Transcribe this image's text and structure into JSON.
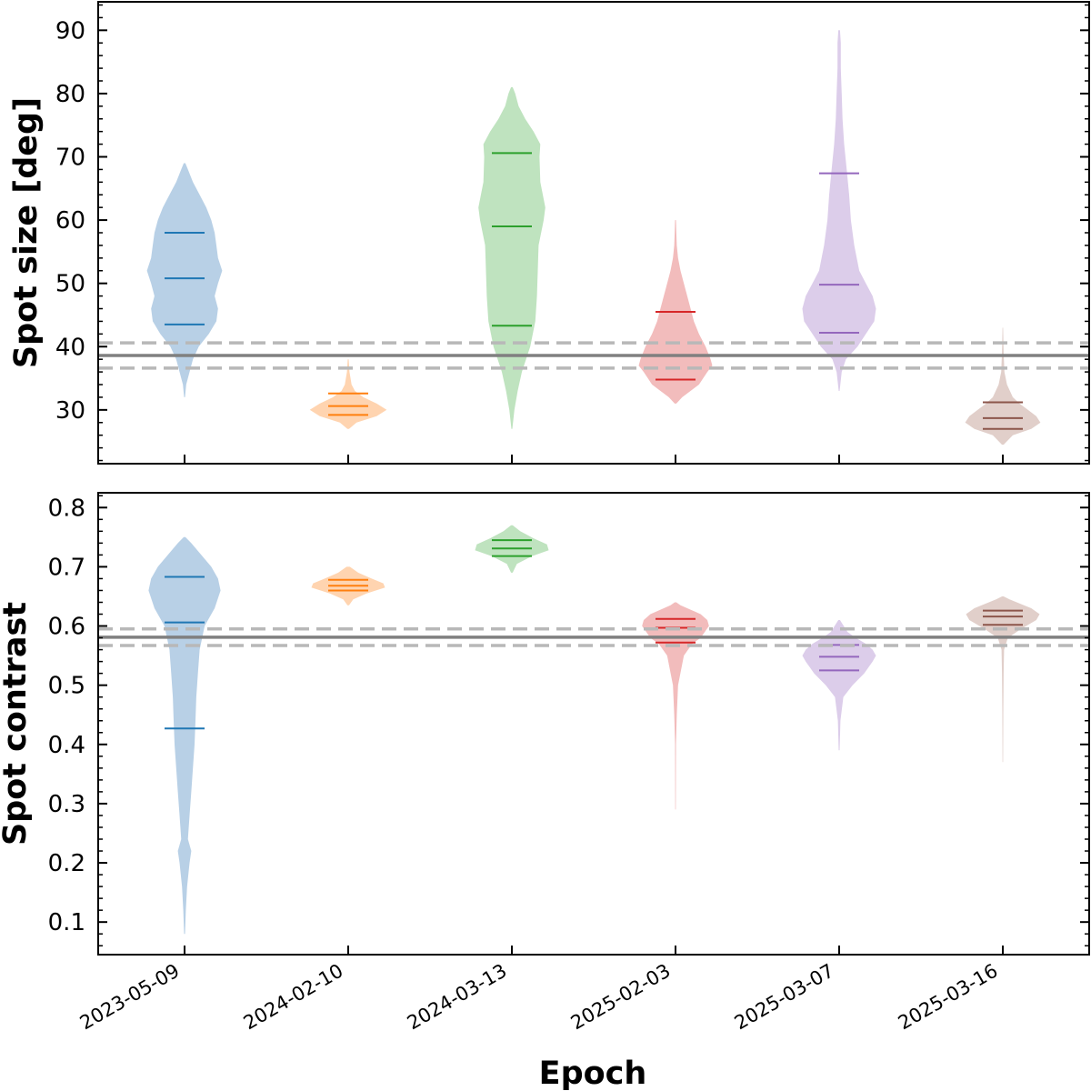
{
  "figure": {
    "xlabel": "Epoch"
  },
  "chart_data": [
    {
      "type": "violin",
      "title": "",
      "xlabel": "",
      "ylabel": "Spot size [deg]",
      "ylim": [
        21.5,
        94.5
      ],
      "yticks": [
        30,
        40,
        50,
        60,
        70,
        80,
        90
      ],
      "categories": [
        "2023-05-09",
        "2024-02-10",
        "2024-03-13",
        "2025-02-03",
        "2025-03-07",
        "2025-03-16"
      ],
      "reference": {
        "value": 38.6,
        "lower": 36.6,
        "upper": 40.6
      },
      "series": [
        {
          "name": "2023-05-09",
          "color": "#1f77b4",
          "fill": "#b8d0e6",
          "percentiles": [
            43.5,
            50.8,
            58.0
          ],
          "profile": [
            [
              32,
              0.5
            ],
            [
              34,
              2
            ],
            [
              36,
              6
            ],
            [
              38,
              10
            ],
            [
              40,
              17
            ],
            [
              42,
              29
            ],
            [
              44,
              38
            ],
            [
              46,
              40
            ],
            [
              48,
              36
            ],
            [
              50,
              40
            ],
            [
              52,
              45
            ],
            [
              54,
              40
            ],
            [
              56,
              38
            ],
            [
              58,
              36
            ],
            [
              60,
              32
            ],
            [
              62,
              26
            ],
            [
              64,
              18
            ],
            [
              66,
              10
            ],
            [
              68,
              4
            ],
            [
              69,
              1
            ]
          ]
        },
        {
          "name": "2024-02-10",
          "color": "#ff7f0e",
          "fill": "#ffd4b0",
          "percentiles": [
            29.2,
            30.6,
            32.6
          ],
          "profile": [
            [
              27,
              1
            ],
            [
              28,
              10
            ],
            [
              29,
              34
            ],
            [
              30,
              46
            ],
            [
              31,
              34
            ],
            [
              32,
              18
            ],
            [
              33,
              8
            ],
            [
              34,
              4
            ],
            [
              36,
              1.5
            ],
            [
              38,
              0.5
            ]
          ]
        },
        {
          "name": "2024-03-13",
          "color": "#2ca02c",
          "fill": "#bfe3bf",
          "percentiles": [
            43.3,
            59.0,
            70.6
          ],
          "profile": [
            [
              27,
              0.5
            ],
            [
              30,
              3
            ],
            [
              33,
              7
            ],
            [
              36,
              12
            ],
            [
              40,
              22
            ],
            [
              44,
              28
            ],
            [
              48,
              30
            ],
            [
              52,
              31
            ],
            [
              56,
              32
            ],
            [
              60,
              38
            ],
            [
              62,
              40
            ],
            [
              66,
              34
            ],
            [
              70,
              33
            ],
            [
              72,
              34
            ],
            [
              74,
              26
            ],
            [
              76,
              16
            ],
            [
              78,
              8
            ],
            [
              80,
              4
            ],
            [
              81,
              1
            ]
          ]
        },
        {
          "name": "2025-02-03",
          "color": "#d62728",
          "fill": "#f2bcbc",
          "percentiles": [
            34.8,
            38.6,
            45.5
          ],
          "profile": [
            [
              31,
              1
            ],
            [
              32,
              8
            ],
            [
              34,
              28
            ],
            [
              36,
              38
            ],
            [
              37,
              44
            ],
            [
              38,
              42
            ],
            [
              40,
              36
            ],
            [
              42,
              28
            ],
            [
              44,
              22
            ],
            [
              46,
              18
            ],
            [
              48,
              14
            ],
            [
              50,
              10
            ],
            [
              52,
              6
            ],
            [
              54,
              3
            ],
            [
              56,
              1.5
            ],
            [
              58,
              1
            ],
            [
              60,
              0.5
            ]
          ]
        },
        {
          "name": "2025-03-07",
          "color": "#9467bd",
          "fill": "#dccdea",
          "percentiles": [
            42.2,
            49.8,
            67.4
          ],
          "profile": [
            [
              33,
              0.5
            ],
            [
              36,
              3
            ],
            [
              38,
              8
            ],
            [
              40,
              22
            ],
            [
              42,
              32
            ],
            [
              44,
              42
            ],
            [
              46,
              44
            ],
            [
              48,
              40
            ],
            [
              50,
              32
            ],
            [
              52,
              24
            ],
            [
              56,
              18
            ],
            [
              60,
              14
            ],
            [
              64,
              12
            ],
            [
              68,
              9
            ],
            [
              72,
              6
            ],
            [
              76,
              4
            ],
            [
              80,
              3
            ],
            [
              84,
              2
            ],
            [
              88,
              2
            ],
            [
              90,
              1
            ]
          ]
        },
        {
          "name": "2025-03-16",
          "color": "#8c564b",
          "fill": "#e1cfca",
          "percentiles": [
            27.0,
            28.7,
            31.2
          ],
          "profile": [
            [
              24.5,
              1
            ],
            [
              26,
              12
            ],
            [
              27,
              34
            ],
            [
              28,
              45
            ],
            [
              29,
              40
            ],
            [
              30,
              30
            ],
            [
              31,
              20
            ],
            [
              32,
              12
            ],
            [
              34,
              5
            ],
            [
              36,
              2
            ],
            [
              39,
              1
            ],
            [
              43,
              0.3
            ]
          ]
        }
      ]
    },
    {
      "type": "violin",
      "title": "",
      "xlabel": "Epoch",
      "ylabel": "Spot contrast",
      "ylim": [
        0.045,
        0.825
      ],
      "yticks": [
        0.1,
        0.2,
        0.3,
        0.4,
        0.5,
        0.6,
        0.7,
        0.8
      ],
      "categories": [
        "2023-05-09",
        "2024-02-10",
        "2024-03-13",
        "2025-02-03",
        "2025-03-07",
        "2025-03-16"
      ],
      "reference": {
        "value": 0.581,
        "lower": 0.567,
        "upper": 0.595
      },
      "series": [
        {
          "name": "2023-05-09",
          "color": "#1f77b4",
          "fill": "#b8d0e6",
          "percentiles": [
            0.427,
            0.606,
            0.683
          ],
          "profile": [
            [
              0.08,
              0.5
            ],
            [
              0.12,
              1.5
            ],
            [
              0.16,
              3
            ],
            [
              0.2,
              6
            ],
            [
              0.22,
              8
            ],
            [
              0.24,
              4
            ],
            [
              0.28,
              6
            ],
            [
              0.32,
              8
            ],
            [
              0.36,
              10
            ],
            [
              0.4,
              12
            ],
            [
              0.44,
              13
            ],
            [
              0.48,
              14
            ],
            [
              0.52,
              16
            ],
            [
              0.56,
              18
            ],
            [
              0.6,
              24
            ],
            [
              0.63,
              36
            ],
            [
              0.66,
              43
            ],
            [
              0.68,
              40
            ],
            [
              0.7,
              32
            ],
            [
              0.72,
              20
            ],
            [
              0.74,
              8
            ],
            [
              0.75,
              1
            ]
          ]
        },
        {
          "name": "2024-02-10",
          "color": "#ff7f0e",
          "fill": "#ffd4b0",
          "percentiles": [
            0.66,
            0.668,
            0.678
          ],
          "profile": [
            [
              0.635,
              1
            ],
            [
              0.645,
              6
            ],
            [
              0.655,
              22
            ],
            [
              0.665,
              44
            ],
            [
              0.672,
              42
            ],
            [
              0.68,
              28
            ],
            [
              0.69,
              12
            ],
            [
              0.7,
              2
            ]
          ]
        },
        {
          "name": "2024-03-13",
          "color": "#2ca02c",
          "fill": "#bfe3bf",
          "percentiles": [
            0.718,
            0.731,
            0.745
          ],
          "profile": [
            [
              0.69,
              1
            ],
            [
              0.705,
              6
            ],
            [
              0.718,
              24
            ],
            [
              0.728,
              44
            ],
            [
              0.738,
              42
            ],
            [
              0.748,
              26
            ],
            [
              0.76,
              10
            ],
            [
              0.77,
              1
            ]
          ]
        },
        {
          "name": "2025-02-03",
          "color": "#d62728",
          "fill": "#f2bcbc",
          "percentiles": [
            0.572,
            0.597,
            0.612
          ],
          "profile": [
            [
              0.29,
              0.3
            ],
            [
              0.4,
              0.5
            ],
            [
              0.45,
              1.5
            ],
            [
              0.5,
              3
            ],
            [
              0.55,
              10
            ],
            [
              0.57,
              20
            ],
            [
              0.58,
              30
            ],
            [
              0.6,
              40
            ],
            [
              0.61,
              38
            ],
            [
              0.62,
              30
            ],
            [
              0.635,
              6
            ],
            [
              0.64,
              1
            ]
          ]
        },
        {
          "name": "2025-03-07",
          "color": "#9467bd",
          "fill": "#dccdea",
          "percentiles": [
            0.525,
            0.548,
            0.568
          ],
          "profile": [
            [
              0.39,
              0.5
            ],
            [
              0.44,
              1.5
            ],
            [
              0.48,
              5
            ],
            [
              0.5,
              16
            ],
            [
              0.52,
              30
            ],
            [
              0.54,
              40
            ],
            [
              0.55,
              44
            ],
            [
              0.56,
              40
            ],
            [
              0.57,
              32
            ],
            [
              0.58,
              20
            ],
            [
              0.59,
              10
            ],
            [
              0.61,
              1
            ]
          ]
        },
        {
          "name": "2025-03-16",
          "color": "#8c564b",
          "fill": "#e1cfca",
          "percentiles": [
            0.602,
            0.616,
            0.626
          ],
          "profile": [
            [
              0.37,
              0.3
            ],
            [
              0.45,
              0.5
            ],
            [
              0.52,
              1
            ],
            [
              0.56,
              1.5
            ],
            [
              0.58,
              6
            ],
            [
              0.595,
              22
            ],
            [
              0.61,
              40
            ],
            [
              0.62,
              44
            ],
            [
              0.63,
              34
            ],
            [
              0.645,
              8
            ],
            [
              0.65,
              1
            ]
          ]
        }
      ]
    }
  ]
}
